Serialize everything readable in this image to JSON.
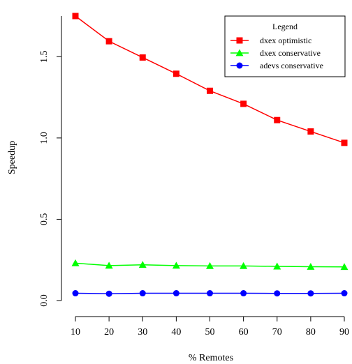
{
  "chart_data": {
    "type": "line",
    "title": "",
    "xlabel": "% Remotes",
    "ylabel": "Speedup",
    "x": [
      10,
      20,
      30,
      40,
      50,
      60,
      70,
      80,
      90
    ],
    "xlim": [
      10,
      90
    ],
    "ylim": [
      0.0,
      1.75
    ],
    "xticks": [
      "10",
      "20",
      "30",
      "40",
      "50",
      "60",
      "70",
      "80",
      "90"
    ],
    "yticks": [
      "0.0",
      "0.5",
      "1.0",
      "1.5"
    ],
    "grid": false,
    "legend": {
      "title": "Legend",
      "position": "top-right"
    },
    "series": [
      {
        "name": "dxex optimistic",
        "color": "#ff0000",
        "marker": "square",
        "values": [
          1.75,
          1.595,
          1.495,
          1.395,
          1.29,
          1.21,
          1.11,
          1.04,
          0.97
        ]
      },
      {
        "name": "dxex conservative",
        "color": "#00ff00",
        "marker": "triangle",
        "values": [
          0.23,
          0.215,
          0.22,
          0.215,
          0.213,
          0.213,
          0.21,
          0.208,
          0.207
        ]
      },
      {
        "name": "adevs conservative",
        "color": "#0000ff",
        "marker": "circle",
        "values": [
          0.045,
          0.042,
          0.045,
          0.045,
          0.045,
          0.045,
          0.044,
          0.044,
          0.045
        ]
      }
    ]
  }
}
